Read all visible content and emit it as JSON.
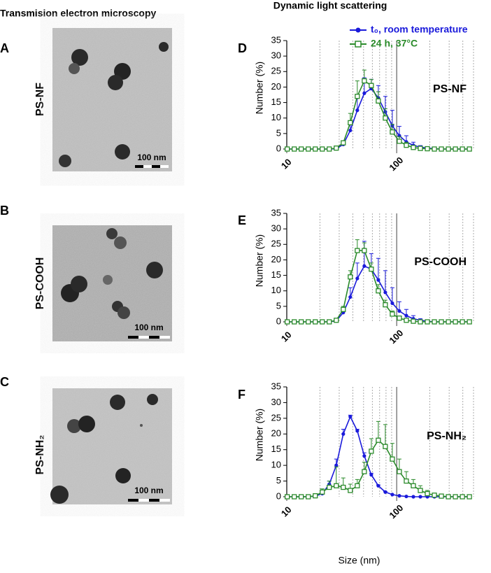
{
  "figure": {
    "left_title": "Transmision electron microscopy",
    "right_title": "Dynamic light scattering",
    "panels": [
      {
        "letter": "A",
        "label": "PS-NF",
        "scale": "100 nm"
      },
      {
        "letter": "B",
        "label": "PS-COOH",
        "scale": "100 nm"
      },
      {
        "letter": "C",
        "label": "PS-NH₂",
        "scale": "100 nm"
      }
    ]
  },
  "chart_data": [
    {
      "type": "line",
      "panel": "D",
      "annotation": "PS-NF",
      "ylabel": "Number (%)",
      "log_x": true,
      "legend": "top-right",
      "xlim": [
        10,
        500
      ],
      "xticks": [
        10,
        100
      ],
      "xminor": [
        20,
        30,
        40,
        50,
        60,
        70,
        80,
        90,
        200,
        300,
        400,
        500
      ],
      "ylim": [
        0,
        35
      ],
      "yticks": [
        0,
        5,
        10,
        15,
        20,
        25,
        30,
        35
      ],
      "x": [
        10.1,
        11.7,
        13.54,
        15.69,
        18.17,
        21.04,
        24.36,
        28.21,
        32.67,
        37.84,
        43.82,
        50.75,
        58.77,
        68.06,
        78.82,
        91.28,
        105.7,
        122.4,
        141.8,
        164.2,
        190.1,
        220.2,
        255,
        295.3,
        342,
        396.1,
        458.7
      ],
      "series": [
        {
          "name": "t₀, room temperature",
          "color": "#1a1adb",
          "marker": "circle",
          "values": [
            0,
            0,
            0,
            0,
            0,
            0,
            0,
            0.1,
            1.5,
            6,
            12.5,
            18,
            19.5,
            16.5,
            12,
            7.5,
            4.3,
            2.3,
            1.2,
            0.6,
            0.3,
            0.1,
            0,
            0,
            0,
            0,
            0
          ],
          "errors": [
            0,
            0,
            0,
            0,
            0,
            0,
            0,
            0,
            0.5,
            2,
            4,
            5,
            3,
            4,
            5,
            5,
            3,
            2,
            1,
            0.5,
            0.3,
            0,
            0,
            0,
            0,
            0,
            0
          ]
        },
        {
          "name": "24 h, 37°C",
          "color": "#2a8a2a",
          "marker": "square",
          "values": [
            0,
            0,
            0,
            0,
            0,
            0,
            0,
            0.3,
            2,
            8.5,
            17,
            22,
            20.5,
            15.5,
            10,
            5.5,
            2.5,
            1.2,
            0.5,
            0.2,
            0.1,
            0,
            0,
            0,
            0,
            0,
            0
          ],
          "errors": [
            0,
            0,
            0,
            0,
            0,
            0,
            0,
            0,
            0.5,
            3,
            5,
            3.5,
            2,
            3,
            3,
            2.5,
            1.5,
            1,
            0.5,
            0.3,
            0,
            0,
            0,
            0,
            0,
            0,
            0
          ]
        }
      ]
    },
    {
      "type": "line",
      "panel": "E",
      "annotation": "PS-COOH",
      "ylabel": "Number (%)",
      "log_x": true,
      "xlim": [
        10,
        500
      ],
      "xticks": [
        10,
        100
      ],
      "xminor": [
        20,
        30,
        40,
        50,
        60,
        70,
        80,
        90,
        200,
        300,
        400,
        500
      ],
      "ylim": [
        0,
        35
      ],
      "yticks": [
        0,
        5,
        10,
        15,
        20,
        25,
        30,
        35
      ],
      "x": [
        10.1,
        11.7,
        13.54,
        15.69,
        18.17,
        21.04,
        24.36,
        28.21,
        32.67,
        37.84,
        43.82,
        50.75,
        58.77,
        68.06,
        78.82,
        91.28,
        105.7,
        122.4,
        141.8,
        164.2,
        190.1,
        220.2,
        255,
        295.3,
        342,
        396.1,
        458.7
      ],
      "series": [
        {
          "name": "t₀, room temperature",
          "color": "#1a1adb",
          "marker": "circle",
          "values": [
            0,
            0,
            0,
            0,
            0,
            0,
            0,
            0.3,
            3,
            8,
            14,
            18,
            17,
            13.5,
            9.5,
            6,
            3.5,
            2,
            1,
            0.5,
            0.2,
            0,
            0,
            0,
            0,
            0,
            0
          ],
          "errors": [
            0,
            0,
            0,
            0,
            0,
            0,
            0,
            0,
            1,
            3,
            5,
            8,
            5,
            7,
            7,
            5,
            3,
            2,
            1,
            0.5,
            0,
            0,
            0,
            0,
            0,
            0,
            0
          ]
        },
        {
          "name": "24 h, 37°C",
          "color": "#2a8a2a",
          "marker": "square",
          "values": [
            0,
            0,
            0,
            0,
            0,
            0,
            0,
            0.5,
            4,
            14.5,
            23,
            23,
            17,
            10,
            5.5,
            2.5,
            1.2,
            0.5,
            0.2,
            0,
            0,
            0,
            0,
            0,
            0,
            0,
            0
          ],
          "errors": [
            0,
            0,
            0,
            0,
            0,
            0,
            0,
            0,
            1,
            2,
            3.5,
            2.5,
            2,
            2,
            1.5,
            1,
            0.5,
            0.3,
            0,
            0,
            0,
            0,
            0,
            0,
            0,
            0,
            0
          ]
        }
      ]
    },
    {
      "type": "line",
      "panel": "F",
      "annotation": "PS-NH₂",
      "ylabel": "Number (%)",
      "xlabel": "Size (nm)",
      "log_x": true,
      "xlim": [
        10,
        500
      ],
      "xticks": [
        10,
        100
      ],
      "xminor": [
        20,
        30,
        40,
        50,
        60,
        70,
        80,
        90,
        200,
        300,
        400,
        500
      ],
      "ylim": [
        0,
        35
      ],
      "yticks": [
        0,
        5,
        10,
        15,
        20,
        25,
        30,
        35
      ],
      "x": [
        10.1,
        11.7,
        13.54,
        15.69,
        18.17,
        21.04,
        24.36,
        28.21,
        32.67,
        37.84,
        43.82,
        50.75,
        58.77,
        68.06,
        78.82,
        91.28,
        105.7,
        122.4,
        141.8,
        164.2,
        190.1,
        220.2,
        255,
        295.3,
        342,
        396.1,
        458.7
      ],
      "series": [
        {
          "name": "t₀, room temperature",
          "color": "#1a1adb",
          "marker": "circle",
          "values": [
            0,
            0,
            0,
            0,
            0.2,
            1,
            4,
            10,
            20,
            25.5,
            21,
            13,
            7,
            3.5,
            1.5,
            0.7,
            0.3,
            0.1,
            0,
            0,
            0,
            0,
            0,
            0,
            0,
            0,
            0
          ],
          "errors": [
            0,
            0,
            0,
            0,
            0,
            0.3,
            1,
            2,
            1.5,
            0.5,
            0.5,
            1,
            0.5,
            0.3,
            0.2,
            0,
            0,
            0,
            0,
            0,
            0,
            0,
            0,
            0,
            0,
            0,
            0
          ]
        },
        {
          "name": "24 h, 37°C",
          "color": "#2a8a2a",
          "marker": "square",
          "values": [
            0,
            0,
            0,
            0,
            0.3,
            1.5,
            3,
            3.5,
            3,
            2,
            3.5,
            8,
            14.5,
            18,
            16,
            12,
            8,
            5,
            3.5,
            2,
            1,
            0.5,
            0.2,
            0,
            0,
            0,
            0
          ],
          "errors": [
            0,
            0,
            0,
            0,
            0.3,
            1,
            2,
            6,
            3,
            2,
            2,
            3,
            4,
            6,
            7,
            5,
            4,
            3,
            2,
            1.5,
            1,
            0.5,
            0.3,
            0,
            0,
            0,
            0
          ]
        }
      ]
    }
  ]
}
